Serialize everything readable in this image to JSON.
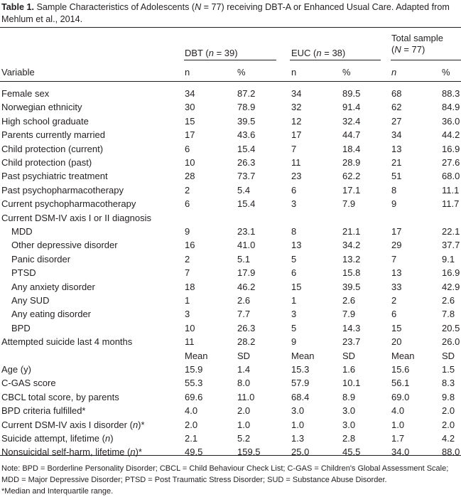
{
  "caption": {
    "label": "Table 1.",
    "text_part1": "Sample Characteristics of Adolescents (",
    "n_symbol": "N",
    "text_part2": " = 77) receiving DBT-A or Enhanced Usual Care. Adapted from Mehlum et al., 2014."
  },
  "headers": {
    "variable": "Variable",
    "groups": [
      {
        "pre": "DBT (",
        "sym": "n",
        "post": " = 39)"
      },
      {
        "pre": "EUC (",
        "sym": "n",
        "post": " = 38)"
      },
      {
        "line1": "Total sample",
        "pre": "(",
        "sym": "N",
        "post": " = 77)"
      }
    ],
    "sub": [
      "n",
      "%",
      "n",
      "%",
      "n",
      "%"
    ]
  },
  "rows": [
    {
      "label": "Female sex",
      "v": [
        "34",
        "87.2",
        "34",
        "89.5",
        "68",
        "88.3"
      ]
    },
    {
      "label": "Norwegian ethnicity",
      "v": [
        "30",
        "78.9",
        "32",
        "91.4",
        "62",
        "84.9"
      ]
    },
    {
      "label": "High school graduate",
      "v": [
        "15",
        "39.5",
        "12",
        "32.4",
        "27",
        "36.0"
      ]
    },
    {
      "label": "Parents currently married",
      "v": [
        "17",
        "43.6",
        "17",
        "44.7",
        "34",
        "44.2"
      ]
    },
    {
      "label": "Child protection (current)",
      "v": [
        "6",
        "15.4",
        "7",
        "18.4",
        "13",
        "16.9"
      ]
    },
    {
      "label": "Child protection (past)",
      "v": [
        "10",
        "26.3",
        "11",
        "28.9",
        "21",
        "27.6"
      ]
    },
    {
      "label": "Past psychiatric treatment",
      "v": [
        "28",
        "73.7",
        "23",
        "62.2",
        "51",
        "68.0"
      ]
    },
    {
      "label": "Past psychopharmacotherapy",
      "v": [
        "2",
        "5.4",
        "6",
        "17.1",
        "8",
        "11.1"
      ]
    },
    {
      "label": "Current psychopharmacotherapy",
      "v": [
        "6",
        "15.4",
        "3",
        "7.9",
        "9",
        "11.7"
      ]
    },
    {
      "label": "Current DSM-IV axis I or II diagnosis",
      "v": [
        "",
        "",
        "",
        "",
        "",
        ""
      ]
    },
    {
      "label": "MDD",
      "indent": true,
      "v": [
        "9",
        "23.1",
        "8",
        "21.1",
        "17",
        "22.1"
      ]
    },
    {
      "label": "Other depressive disorder",
      "indent": true,
      "v": [
        "16",
        "41.0",
        "13",
        "34.2",
        "29",
        "37.7"
      ]
    },
    {
      "label": "Panic disorder",
      "indent": true,
      "v": [
        "2",
        "5.1",
        "5",
        "13.2",
        "7",
        "9.1"
      ]
    },
    {
      "label": "PTSD",
      "indent": true,
      "v": [
        "7",
        "17.9",
        "6",
        "15.8",
        "13",
        "16.9"
      ]
    },
    {
      "label": "Any anxiety disorder",
      "indent": true,
      "v": [
        "18",
        "46.2",
        "15",
        "39.5",
        "33",
        "42.9"
      ]
    },
    {
      "label": "Any SUD",
      "indent": true,
      "v": [
        "1",
        "2.6",
        "1",
        "2.6",
        "2",
        "2.6"
      ]
    },
    {
      "label": "Any eating disorder",
      "indent": true,
      "v": [
        "3",
        "7.7",
        "3",
        "7.9",
        "6",
        "7.8"
      ]
    },
    {
      "label": "BPD",
      "indent": true,
      "v": [
        "10",
        "26.3",
        "5",
        "14.3",
        "15",
        "20.5"
      ]
    },
    {
      "label": "Attempted suicide last 4 months",
      "v": [
        "11",
        "28.2",
        "9",
        "23.7",
        "20",
        "26.0"
      ]
    },
    {
      "label": "",
      "v": [
        "Mean",
        "SD",
        "Mean",
        "SD",
        "Mean",
        "SD"
      ]
    },
    {
      "label": "Age (y)",
      "v": [
        "15.9",
        "1.4",
        "15.3",
        "1.6",
        "15.6",
        "1.5"
      ]
    },
    {
      "label": "C-GAS score",
      "v": [
        "55.3",
        "8.0",
        "57.9",
        "10.1",
        "56.1",
        "8.3"
      ]
    },
    {
      "label": "CBCL total score, by parents",
      "v": [
        "69.6",
        "11.0",
        "68.4",
        "8.9",
        "69.0",
        "9.8"
      ]
    },
    {
      "label": "BPD criteria fulfilled*",
      "v": [
        "4.0",
        "2.0",
        "3.0",
        "3.0",
        "4.0",
        "2.0"
      ]
    },
    {
      "label": "Current DSM-IV axis I disorder (",
      "label_italic": "n",
      "label_end": ")*",
      "v": [
        "2.0",
        "1.0",
        "1.0",
        "3.0",
        "1.0",
        "2.0"
      ]
    },
    {
      "label": "Suicide attempt, lifetime (",
      "label_italic": "n",
      "label_end": ")",
      "v": [
        "2.1",
        "5.2",
        "1.3",
        "2.8",
        "1.7",
        "4.2"
      ]
    },
    {
      "label": "Nonsuicidal self-harm, lifetime (",
      "label_italic": "n",
      "label_end": ")*",
      "v": [
        "49.5",
        "159.5",
        "25.0",
        "45.5",
        "34.0",
        "88.0"
      ]
    }
  ],
  "notes": {
    "line1": "Note: BPD = Borderline Personality Disorder; CBCL = Child Behaviour Check List; C-GAS = Children's Global Assessment Scale; MDD = Major Depressive Disorder; PTSD = Post Traumatic Stress Disorder; SUD = Substance Abuse Disorder.",
    "line2": "*Median and Interquartile range."
  }
}
